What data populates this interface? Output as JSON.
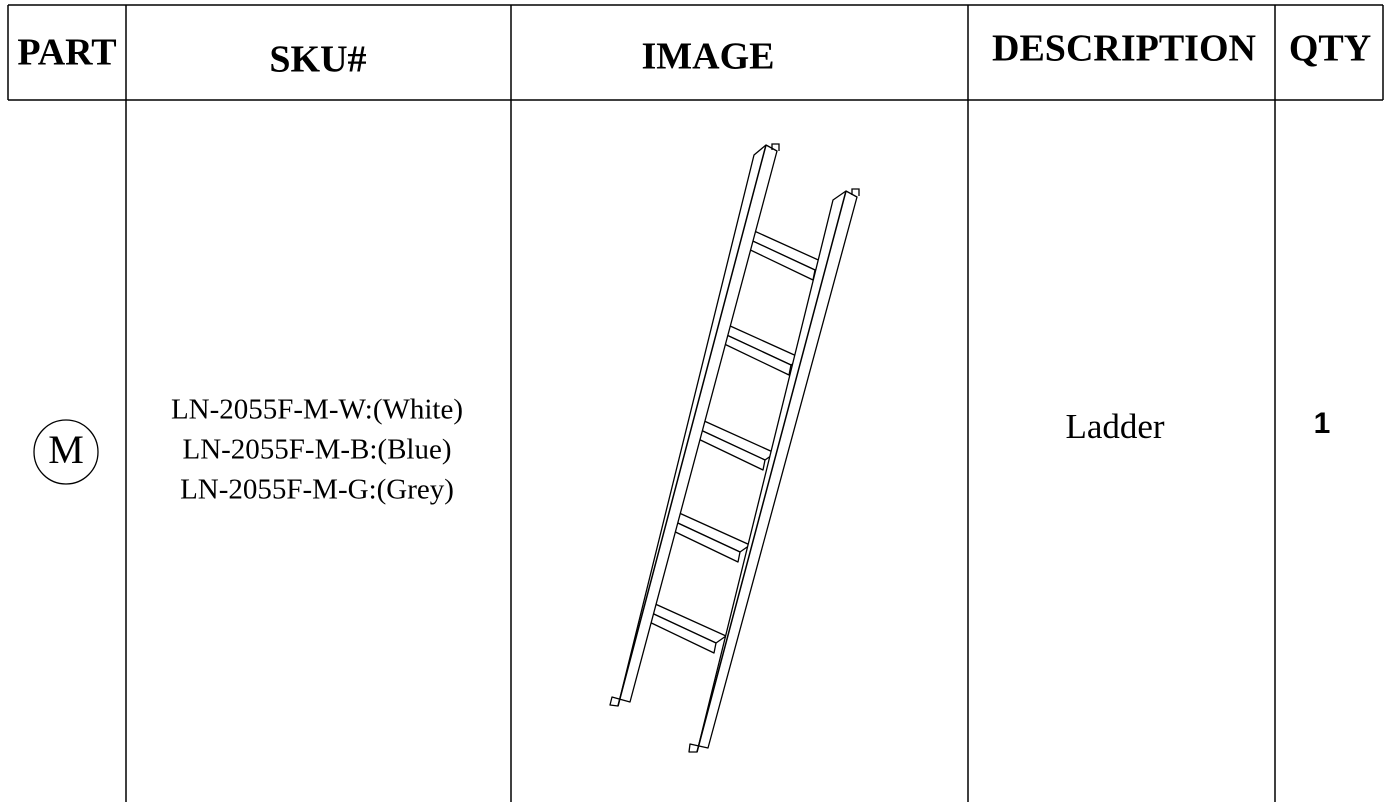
{
  "table": {
    "headers": [
      "PART",
      "SKU#",
      "IMAGE",
      "DESCRIPTION",
      "QTY"
    ],
    "rows": [
      {
        "part": "M",
        "sku": [
          "LN-2055F-M-W:(White)",
          "LN-2055F-M-B:(Blue)",
          "LN-2055F-M-G:(Grey)"
        ],
        "description": "Ladder",
        "qty": "1"
      }
    ]
  }
}
